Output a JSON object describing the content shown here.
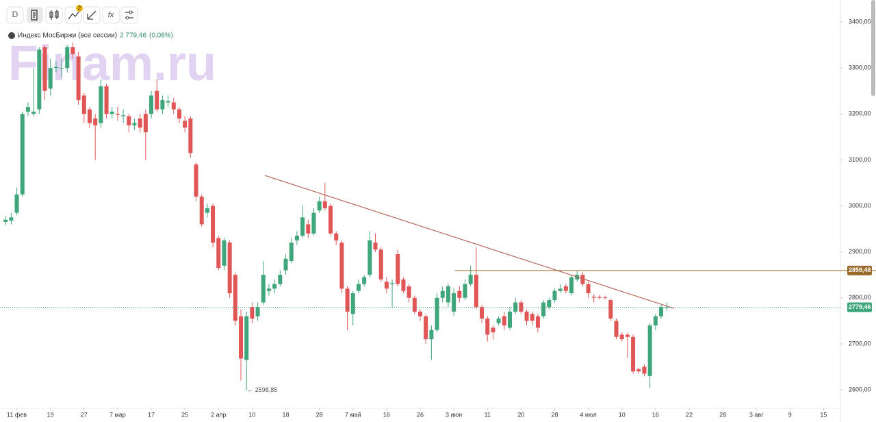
{
  "toolbar": {
    "interval": "D",
    "badge": "2",
    "formula_icon": "fx"
  },
  "watermark": "Finam.ru",
  "chart_data": {
    "type": "candlestick",
    "series": [
      {
        "name": "Индекс МосБиржи (все сессии)",
        "up_color": "#3fa57a",
        "down_color": "#e05555",
        "open": [
          2965,
          2968,
          2985,
          3025,
          3205,
          3200,
          3210,
          3345,
          3255,
          3300,
          3300,
          3300,
          3345,
          3325,
          3240,
          3210,
          3190,
          3180,
          3260,
          3200,
          3200,
          3195,
          3195,
          3175,
          3190,
          3200,
          3200,
          3250,
          3210,
          3225,
          3225,
          3210,
          3185,
          3190,
          3090,
          3020,
          2985,
          3000,
          2930,
          2870,
          2920,
          2850,
          2760,
          2665,
          2780,
          2760,
          2790,
          2815,
          2820,
          2830,
          2860,
          2880,
          2925,
          2935,
          2960,
          2940,
          2990,
          3010,
          3000,
          2940,
          2920,
          2820,
          2765,
          2815,
          2830,
          2850,
          2920,
          2905,
          2835,
          2830,
          2895,
          2840,
          2825,
          2800,
          2770,
          2760,
          2710,
          2730,
          2800,
          2790,
          2770,
          2815,
          2800,
          2830,
          2850,
          2780,
          2755,
          2735,
          2745,
          2760,
          2735,
          2770,
          2790,
          2770,
          2765,
          2760,
          2760,
          2780,
          2795,
          2815,
          2825,
          2810,
          2840,
          2850,
          2830,
          2802,
          2802,
          2801,
          2795,
          2750,
          2720,
          2720,
          2715,
          2645,
          2650,
          2630,
          2740,
          2760,
          2778
        ],
        "high": [
          2978,
          2985,
          3040,
          3205,
          3225,
          3300,
          3345,
          3350,
          3320,
          3315,
          3320,
          3350,
          3355,
          3335,
          3245,
          3215,
          3200,
          3275,
          3265,
          3215,
          3215,
          3210,
          3200,
          3190,
          3200,
          3210,
          3250,
          3275,
          3240,
          3240,
          3235,
          3215,
          3195,
          3195,
          3095,
          3025,
          3005,
          3005,
          2935,
          2930,
          2925,
          2855,
          2775,
          2770,
          2790,
          2790,
          2880,
          2830,
          2840,
          2860,
          2895,
          2930,
          2945,
          3000,
          2970,
          2995,
          3020,
          3050,
          3005,
          2945,
          2925,
          2825,
          2815,
          2840,
          2850,
          2945,
          2940,
          2910,
          2845,
          2840,
          2905,
          2845,
          2830,
          2805,
          2775,
          2765,
          2740,
          2810,
          2825,
          2830,
          2820,
          2825,
          2840,
          2870,
          2910,
          2785,
          2760,
          2740,
          2760,
          2770,
          2780,
          2800,
          2795,
          2775,
          2770,
          2765,
          2795,
          2800,
          2820,
          2830,
          2830,
          2850,
          2860,
          2855,
          2835,
          2808,
          2806,
          2805,
          2798,
          2755,
          2725,
          2725,
          2720,
          2648,
          2655,
          2745,
          2765,
          2785,
          2790
        ],
        "low": [
          2958,
          2960,
          2980,
          3020,
          3195,
          3195,
          3200,
          3230,
          3240,
          3290,
          3280,
          3290,
          3320,
          3220,
          3180,
          3170,
          3100,
          3170,
          3190,
          3190,
          3185,
          3180,
          3160,
          3165,
          3160,
          3100,
          3190,
          3205,
          3200,
          3215,
          3200,
          3180,
          3160,
          3105,
          3010,
          2955,
          2975,
          2910,
          2860,
          2860,
          2800,
          2740,
          2620,
          2598.85,
          2745,
          2750,
          2785,
          2805,
          2810,
          2825,
          2850,
          2875,
          2915,
          2930,
          2930,
          2935,
          2985,
          2990,
          2935,
          2915,
          2810,
          2730,
          2740,
          2810,
          2825,
          2845,
          2900,
          2835,
          2810,
          2780,
          2825,
          2810,
          2790,
          2765,
          2750,
          2700,
          2665,
          2725,
          2790,
          2780,
          2760,
          2790,
          2795,
          2825,
          2775,
          2745,
          2705,
          2710,
          2740,
          2730,
          2730,
          2765,
          2765,
          2740,
          2740,
          2725,
          2755,
          2775,
          2790,
          2810,
          2810,
          2805,
          2835,
          2825,
          2800,
          2790,
          2796,
          2797,
          2750,
          2710,
          2705,
          2670,
          2635,
          2636,
          2630,
          2605,
          2730,
          2755,
          2772
        ],
        "close": [
          2970,
          2975,
          3025,
          3200,
          3215,
          3205,
          3340,
          3250,
          3300,
          3302,
          3300,
          3345,
          3330,
          3230,
          3200,
          3180,
          3175,
          3260,
          3200,
          3205,
          3198,
          3197,
          3175,
          3180,
          3170,
          3160,
          3240,
          3210,
          3230,
          3228,
          3210,
          3190,
          3170,
          3115,
          3020,
          2960,
          2995,
          2920,
          2865,
          2925,
          2810,
          2750,
          2668,
          2760,
          2755,
          2780,
          2850,
          2820,
          2830,
          2850,
          2885,
          2920,
          2935,
          2975,
          2940,
          2985,
          3010,
          2995,
          2940,
          2925,
          2820,
          2770,
          2810,
          2830,
          2845,
          2925,
          2905,
          2840,
          2820,
          2832,
          2830,
          2815,
          2800,
          2770,
          2760,
          2710,
          2730,
          2800,
          2815,
          2825,
          2810,
          2800,
          2830,
          2850,
          2780,
          2755,
          2720,
          2725,
          2755,
          2740,
          2770,
          2790,
          2770,
          2750,
          2750,
          2735,
          2790,
          2795,
          2815,
          2820,
          2815,
          2845,
          2850,
          2830,
          2810,
          2800,
          2800,
          2800,
          2755,
          2715,
          2710,
          2715,
          2640,
          2640,
          2635,
          2740,
          2760,
          2780,
          2779.46
        ]
      }
    ],
    "last_price": {
      "value": 2779.46,
      "label": "2 779,46"
    },
    "change": {
      "value": 0.08,
      "label": "(0,08%)"
    },
    "price_tag": {
      "value": 2779.46,
      "label": "2779,46",
      "color": "#3fa57a"
    },
    "level": {
      "value": 2859.48,
      "label": "2859,48",
      "x": 80.2,
      "color": "#9a6a2a"
    },
    "trendline": {
      "x": [
        46.3,
        119.3
      ],
      "y": [
        3066,
        2777
      ],
      "color": "#b5655a"
    },
    "low_label": "← 2598,85",
    "xlim": [
      -1,
      149
    ],
    "xticks": [
      {
        "value": 2,
        "label": "11 фев"
      },
      {
        "value": 8,
        "label": "19"
      },
      {
        "value": 14,
        "label": "27"
      },
      {
        "value": 20,
        "label": "7 мар"
      },
      {
        "value": 26,
        "label": "17"
      },
      {
        "value": 32,
        "label": "25"
      },
      {
        "value": 38,
        "label": "2 апр"
      },
      {
        "value": 44,
        "label": "10"
      },
      {
        "value": 50,
        "label": "18"
      },
      {
        "value": 56,
        "label": "28"
      },
      {
        "value": 62,
        "label": "7 май"
      },
      {
        "value": 68,
        "label": "16"
      },
      {
        "value": 74,
        "label": "26"
      },
      {
        "value": 80,
        "label": "3 июн"
      },
      {
        "value": 86,
        "label": "11"
      },
      {
        "value": 92,
        "label": "20"
      },
      {
        "value": 98,
        "label": "28"
      },
      {
        "value": 104,
        "label": "4 июл"
      },
      {
        "value": 110,
        "label": "10"
      },
      {
        "value": 116,
        "label": "16"
      },
      {
        "value": 122,
        "label": "22"
      },
      {
        "value": 128,
        "label": "28"
      },
      {
        "value": 134,
        "label": "3 авг"
      },
      {
        "value": 140,
        "label": "9"
      },
      {
        "value": 146,
        "label": "15"
      }
    ],
    "ylim": [
      2561.3,
      3447.7
    ],
    "yticks": [
      {
        "value": 2600,
        "label": "2600,00"
      },
      {
        "value": 2700,
        "label": "2700,00"
      },
      {
        "value": 2800,
        "label": "2800,00"
      },
      {
        "value": 2900,
        "label": "2900,00"
      },
      {
        "value": 3000,
        "label": "3000,00"
      },
      {
        "value": 3100,
        "label": "3100,00"
      },
      {
        "value": 3200,
        "label": "3200,00"
      },
      {
        "value": 3300,
        "label": "3300,00"
      },
      {
        "value": 3400,
        "label": "3400,00"
      }
    ]
  }
}
